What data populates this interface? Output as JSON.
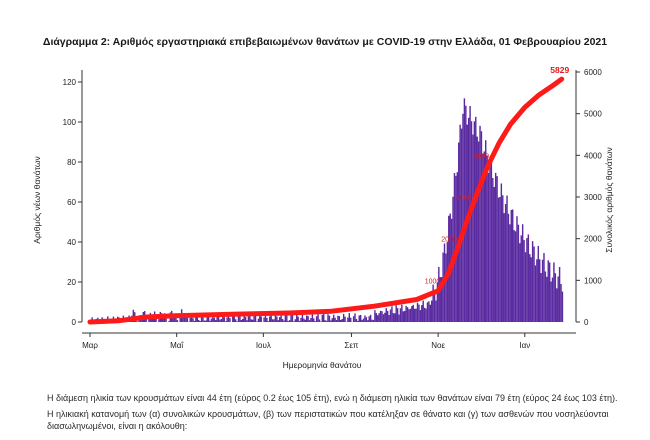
{
  "chart_data": {
    "type": "bar",
    "title": "Διάγραμμα 2: Αριθμός εργαστηριακά επιβεβαιωμένων θανάτων με COVID-19 στην Ελλάδα, 01 Φεβρουαρίου 2021",
    "xlabel": "Ημερομηνία θανάτου",
    "ylabel": "Αριθμός νέων θανάτων",
    "ylabel_right": "Συνολικός αριθμός θανάτων",
    "ylim": [
      0,
      125
    ],
    "ylim_right": [
      0,
      6000
    ],
    "yticks": [
      0,
      20,
      40,
      60,
      80,
      100,
      120
    ],
    "yticks_right": [
      0,
      1000,
      2000,
      3000,
      4000,
      5000,
      6000
    ],
    "x_range_days": [
      0,
      335
    ],
    "x_ticks": [
      {
        "label": "Μαρ",
        "day": 0
      },
      {
        "label": "Μαΐ",
        "day": 61
      },
      {
        "label": "Ιουλ",
        "day": 122
      },
      {
        "label": "Σεπ",
        "day": 184
      },
      {
        "label": "Νοε",
        "day": 245
      },
      {
        "label": "Ιαν",
        "day": 306
      }
    ],
    "series": [
      {
        "name": "Νέοι θάνατοι",
        "color": "#5a2aa0",
        "values_from": "generated_daily"
      },
      {
        "name": "Συνολικοί θάνατοι",
        "color": "#ff1a1a",
        "axis": "right",
        "points": [
          {
            "day": 0,
            "value": 0
          },
          {
            "day": 20,
            "value": 30
          },
          {
            "day": 40,
            "value": 120
          },
          {
            "day": 60,
            "value": 150
          },
          {
            "day": 100,
            "value": 185
          },
          {
            "day": 140,
            "value": 215
          },
          {
            "day": 170,
            "value": 260
          },
          {
            "day": 200,
            "value": 380
          },
          {
            "day": 230,
            "value": 540
          },
          {
            "day": 245,
            "value": 750
          },
          {
            "day": 252,
            "value": 1150
          },
          {
            "day": 258,
            "value": 1700
          },
          {
            "day": 265,
            "value": 2400
          },
          {
            "day": 272,
            "value": 3050
          },
          {
            "day": 280,
            "value": 3750
          },
          {
            "day": 288,
            "value": 4300
          },
          {
            "day": 296,
            "value": 4750
          },
          {
            "day": 306,
            "value": 5150
          },
          {
            "day": 316,
            "value": 5450
          },
          {
            "day": 326,
            "value": 5680
          },
          {
            "day": 332,
            "value": 5829
          }
        ]
      }
    ],
    "end_label": "5829",
    "annotations": [
      "1000",
      "2000",
      "3000",
      "4000"
    ]
  },
  "text": {
    "p1": "Η διάμεση ηλικία των κρουσμάτων είναι 44 έτη (εύρος 0.2 έως 105 έτη), ενώ η διάμεση ηλικία των θανάτων είναι 79 έτη (εύρος 24 έως 103 έτη).",
    "p2": "Η ηλικιακή κατανομή των (α) συνολικών κρουσμάτων, (β) των περιστατικών που κατέληξαν σε θάνατο και (γ) των ασθενών που νοσηλεύονται διασωληνωμένοι, είναι η ακόλουθη:"
  },
  "colors": {
    "bars": "#5a2aa0",
    "line": "#ff1a1a",
    "axis": "#333333"
  }
}
